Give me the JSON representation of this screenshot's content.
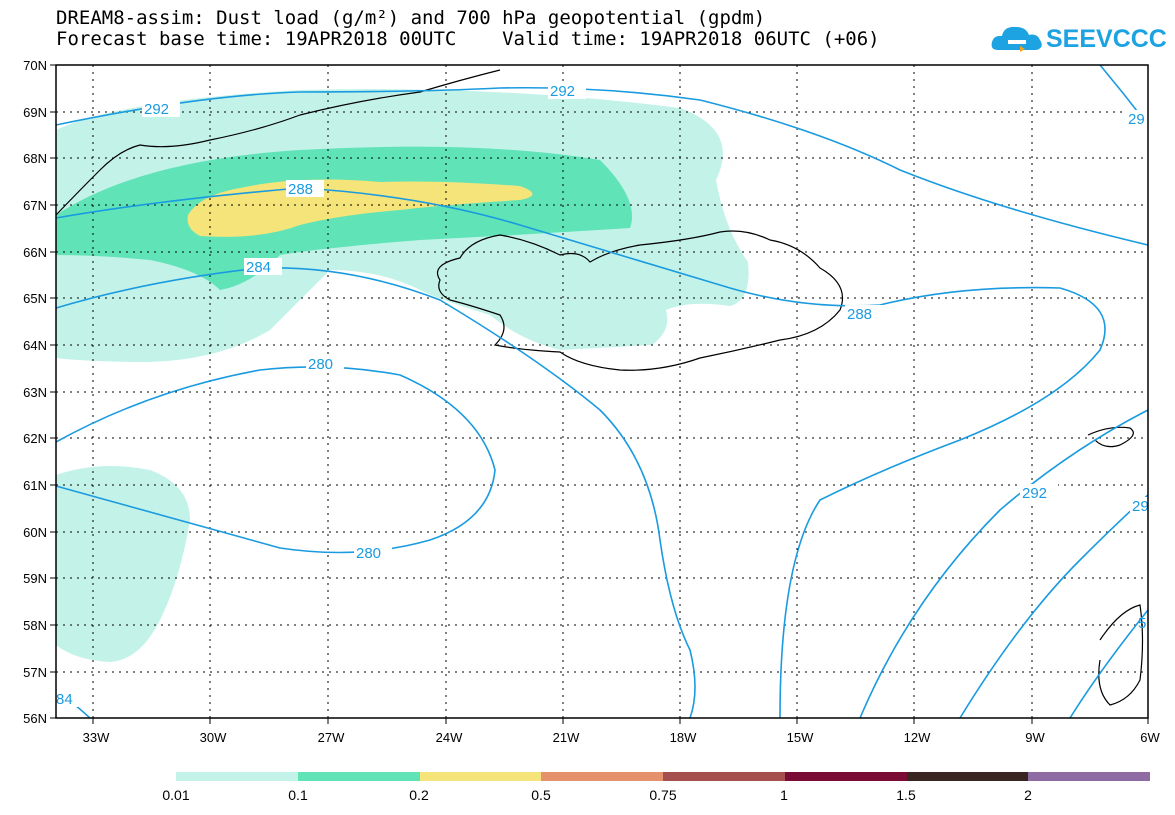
{
  "header": {
    "title_line1": "DREAM8-assim: Dust load (g/m²) and 700 hPa geopotential (gpdm)",
    "title_line2": "Forecast base time: 19APR2018 00UTC    Valid time: 19APR2018 06UTC (+06)"
  },
  "logo": {
    "text": "SEEVCCC",
    "icon": "cloud-logo-icon",
    "color": "#1da2e2"
  },
  "map": {
    "lat_labels": [
      "70N",
      "69N",
      "68N",
      "67N",
      "66N",
      "65N",
      "64N",
      "63N",
      "62N",
      "61N",
      "60N",
      "59N",
      "58N",
      "57N",
      "56N"
    ],
    "lon_labels": [
      "33W",
      "30W",
      "27W",
      "24W",
      "21W",
      "18W",
      "15W",
      "12W",
      "9W",
      "6W"
    ],
    "contour_labels": [
      "292",
      "292",
      "29",
      "288",
      "288",
      "284",
      "280",
      "280",
      "292",
      "29",
      "84",
      "5"
    ],
    "contour_color": "#1a9be0",
    "dust_colors": [
      "#c3f2e8",
      "#5fe3b7",
      "#f5e47a"
    ]
  },
  "legend": {
    "colors": [
      "#c3f2e8",
      "#5fe3b7",
      "#f5e47a",
      "#e5916b",
      "#a5504e",
      "#7a0b35",
      "#3a2620",
      "#8e6ba3"
    ],
    "labels": [
      "0.01",
      "0.1",
      "0.2",
      "0.5",
      "0.75",
      "1",
      "1.5",
      "2"
    ]
  }
}
